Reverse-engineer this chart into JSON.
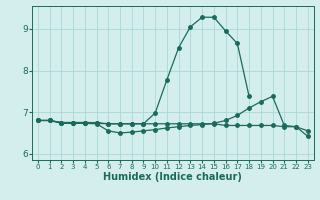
{
  "x": [
    0,
    1,
    2,
    3,
    4,
    5,
    6,
    7,
    8,
    9,
    10,
    11,
    12,
    13,
    14,
    15,
    16,
    17,
    18,
    19,
    20,
    21,
    22,
    23
  ],
  "line1": [
    6.8,
    6.8,
    6.75,
    6.75,
    6.75,
    6.75,
    6.72,
    6.72,
    6.72,
    6.72,
    6.98,
    7.78,
    8.55,
    9.05,
    9.28,
    9.28,
    8.95,
    8.65,
    7.38,
    null,
    null,
    null,
    null,
    null
  ],
  "line2": [
    6.8,
    6.8,
    6.75,
    6.75,
    6.75,
    6.73,
    6.72,
    6.72,
    6.72,
    6.72,
    6.72,
    6.72,
    6.72,
    6.72,
    6.72,
    6.72,
    6.68,
    6.68,
    6.68,
    6.68,
    6.68,
    6.65,
    6.65,
    6.42
  ],
  "line3": [
    6.8,
    6.8,
    6.73,
    6.73,
    6.73,
    6.72,
    6.55,
    6.5,
    6.52,
    6.55,
    6.58,
    6.62,
    6.65,
    6.68,
    6.7,
    6.73,
    6.8,
    6.92,
    7.1,
    7.25,
    7.38,
    6.68,
    6.65,
    6.55
  ],
  "line_color": "#1a6b5a",
  "bg_color": "#d4eeee",
  "xlabel": "Humidex (Indice chaleur)",
  "xlabel_fontsize": 7,
  "ylim": [
    5.85,
    9.55
  ],
  "xlim": [
    -0.5,
    23.5
  ],
  "yticks": [
    6,
    7,
    8,
    9
  ],
  "xticks": [
    0,
    1,
    2,
    3,
    4,
    5,
    6,
    7,
    8,
    9,
    10,
    11,
    12,
    13,
    14,
    15,
    16,
    17,
    18,
    19,
    20,
    21,
    22,
    23
  ],
  "grid_color": "#a8d8d8",
  "tick_color": "#1a6b5a",
  "marker_size": 2.5,
  "line_width": 0.9
}
